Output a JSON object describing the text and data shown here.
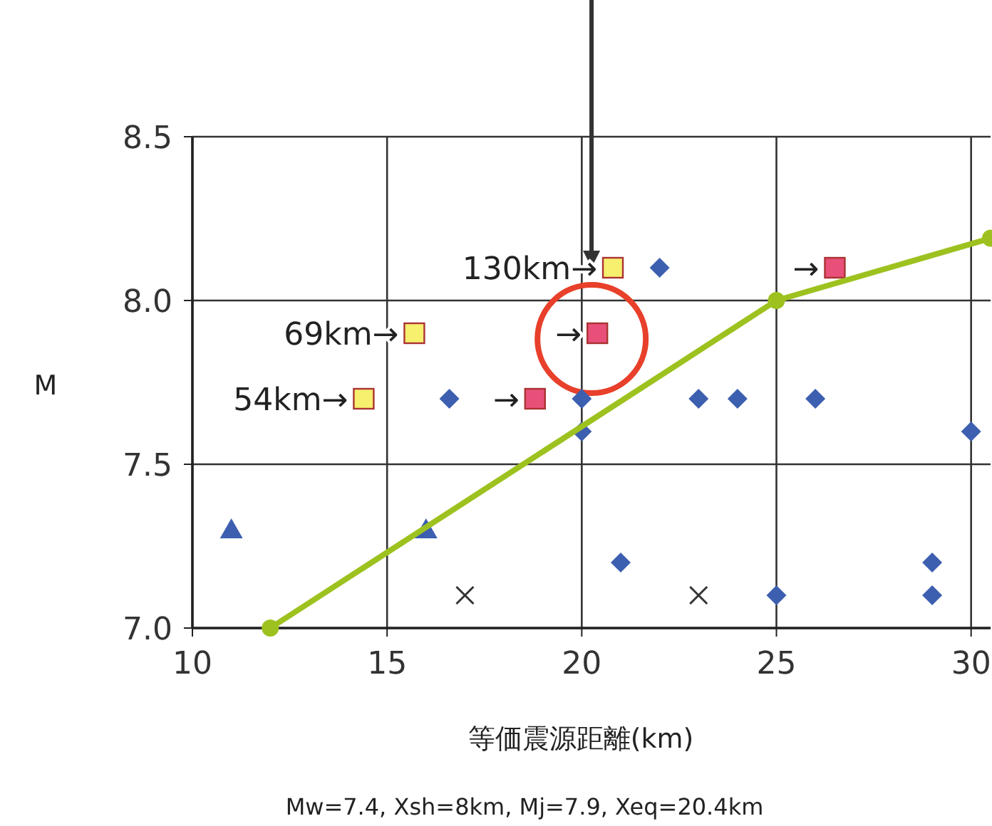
{
  "chart_data": {
    "type": "scatter",
    "xlabel": "等価震源距離(km)",
    "ylabel": "M",
    "xlim": [
      10,
      30.5
    ],
    "xticks": [
      10,
      15,
      20,
      25,
      30
    ],
    "ylim": [
      7,
      8.5
    ],
    "yticks": [
      {
        "value": 7,
        "label": "7.0"
      },
      {
        "value": 7.5,
        "label": "7.5"
      },
      {
        "value": 8,
        "label": "8.0"
      },
      {
        "value": 8.5,
        "label": "8.5"
      }
    ],
    "grid": true,
    "series": [
      {
        "type": "scatter",
        "marker": "square",
        "color": "#f7ef6e",
        "x": [
          14.4,
          15.7,
          20.8
        ],
        "values": [
          7.7,
          7.9,
          8.1
        ]
      },
      {
        "type": "scatter",
        "marker": "square",
        "color": "#e8507a",
        "x": [
          18.8,
          20.4,
          26.5
        ],
        "values": [
          7.7,
          7.9,
          8.1
        ]
      },
      {
        "type": "scatter",
        "marker": "diamond",
        "color": "#3d5fb0",
        "x": [
          16.6,
          20,
          20,
          22,
          23,
          24,
          26,
          30,
          21,
          25,
          29,
          29
        ],
        "values": [
          7.7,
          7.7,
          7.6,
          8.1,
          7.7,
          7.7,
          7.7,
          7.6,
          7.2,
          7.1,
          7.2,
          7.1
        ]
      },
      {
        "type": "scatter",
        "marker": "triangle",
        "color": "#3d5fb0",
        "x": [
          11,
          16
        ],
        "values": [
          7.3,
          7.3
        ]
      },
      {
        "type": "scatter",
        "marker": "cross",
        "color": "#333333",
        "x": [
          17,
          23
        ],
        "values": [
          7.1,
          7.1
        ]
      },
      {
        "type": "line",
        "marker": "circle",
        "color": "#9dc21f",
        "x": [
          12,
          25,
          30.5
        ],
        "values": [
          7.0,
          8.0,
          8.19
        ]
      }
    ],
    "annotations": [
      {
        "text": "130km→",
        "x": 20.8,
        "y": 8.1
      },
      {
        "text": "69km→",
        "x": 15.7,
        "y": 7.9
      },
      {
        "text": "54km→",
        "x": 14.4,
        "y": 7.7
      },
      {
        "text": "→",
        "x": 18.8,
        "y": 7.7
      },
      {
        "text": "→",
        "x": 20.4,
        "y": 7.9
      },
      {
        "text": "→",
        "x": 26.5,
        "y": 8.1
      },
      "Mw=7.4, Xsh=8km, Mj=7.9, Xeq=20.4km"
    ]
  }
}
